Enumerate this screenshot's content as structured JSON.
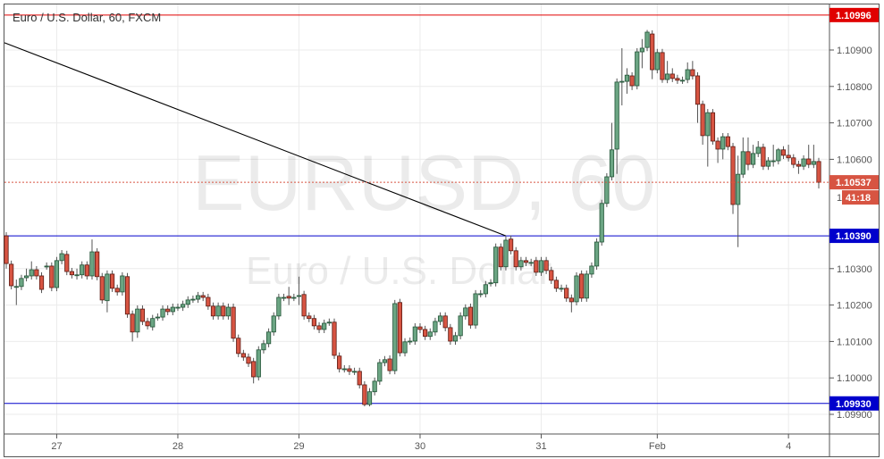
{
  "header": {
    "title": "Euro / U.S. Dollar, 60, FXCM"
  },
  "watermark": {
    "symbol": "EURUSD, 60",
    "description": "Euro / U.S. Dollar"
  },
  "colors": {
    "up": "#6ba583",
    "up_border": "#225437",
    "down": "#d75442",
    "down_border": "#5b1a13",
    "resistance_line": "#e00000",
    "support_line": "#0000cc",
    "trendline": "#000000",
    "grid": "#ebebeb"
  },
  "chart_data": {
    "type": "candlestick",
    "symbol": "EURUSD",
    "interval": "60",
    "source": "FXCM",
    "ylim": [
      1.0986,
      1.1109
    ],
    "yticks": [
      "1.10900",
      "1.10800",
      "1.10700",
      "1.10600",
      "1.10300",
      "1.10200",
      "1.10100",
      "1.10000",
      "1.09900"
    ],
    "xticks": [
      {
        "label": "27",
        "candle_index": 10
      },
      {
        "label": "28",
        "candle_index": 34
      },
      {
        "label": "29",
        "candle_index": 58
      },
      {
        "label": "30",
        "candle_index": 82
      },
      {
        "label": "31",
        "candle_index": 106
      },
      {
        "label": "Feb",
        "candle_index": 129
      },
      {
        "label": "4",
        "candle_index": 155
      }
    ],
    "grid": true,
    "horizontal_lines": [
      {
        "price": 1.10996,
        "label": "1.10996",
        "color": "#e00000"
      },
      {
        "price": 1.1039,
        "label": "1.10390",
        "color": "#0000cc"
      },
      {
        "price": 1.0993,
        "label": "1.09930",
        "color": "#0000cc"
      }
    ],
    "trendline": {
      "start": {
        "candle_index": 0,
        "price": 1.1092
      },
      "end": {
        "candle_index": 99,
        "price": 1.1039
      }
    },
    "last_price": {
      "price": 1.10537,
      "label": "1.10537",
      "countdown": "41:18",
      "color": "#d75442"
    },
    "candles_ohlc": [
      [
        1.1039,
        1.104,
        1.103,
        1.10314
      ],
      [
        1.10312,
        1.10322,
        1.10243,
        1.10253
      ],
      [
        1.10251,
        1.1027,
        1.102,
        1.10251
      ],
      [
        1.10251,
        1.10283,
        1.10241,
        1.10273
      ],
      [
        1.10275,
        1.103,
        1.10265,
        1.1028
      ],
      [
        1.1028,
        1.1032,
        1.1027,
        1.10297
      ],
      [
        1.10297,
        1.10307,
        1.1027,
        1.1028
      ],
      [
        1.1028,
        1.1029,
        1.10233,
        1.10243
      ],
      [
        1.10307,
        1.10317,
        1.10297,
        1.10307
      ],
      [
        1.10307,
        1.10317,
        1.10238,
        1.10248
      ],
      [
        1.10248,
        1.10332,
        1.10238,
        1.10322
      ],
      [
        1.10322,
        1.10351,
        1.10312,
        1.10341
      ],
      [
        1.10339,
        1.10349,
        1.10282,
        1.10292
      ],
      [
        1.10292,
        1.10302,
        1.10273,
        1.10283
      ],
      [
        1.10283,
        1.103,
        1.1027,
        1.10283
      ],
      [
        1.10283,
        1.1032,
        1.10273,
        1.1031
      ],
      [
        1.1031,
        1.1032,
        1.1027,
        1.1028
      ],
      [
        1.1028,
        1.1038,
        1.1027,
        1.10346
      ],
      [
        1.10346,
        1.10356,
        1.10268,
        1.10278
      ],
      [
        1.10278,
        1.10288,
        1.10204,
        1.10214
      ],
      [
        1.10212,
        1.10295,
        1.1018,
        1.10285
      ],
      [
        1.10285,
        1.10295,
        1.10236,
        1.10246
      ],
      [
        1.10246,
        1.10256,
        1.10226,
        1.10236
      ],
      [
        1.10236,
        1.1029,
        1.10226,
        1.1028
      ],
      [
        1.10278,
        1.10288,
        1.10165,
        1.10175
      ],
      [
        1.10175,
        1.10185,
        1.101,
        1.10126
      ],
      [
        1.10126,
        1.10199,
        1.1011,
        1.10189
      ],
      [
        1.10189,
        1.10199,
        1.10145,
        1.10155
      ],
      [
        1.10155,
        1.10165,
        1.10133,
        1.10143
      ],
      [
        1.1014,
        1.10173,
        1.1013,
        1.10163
      ],
      [
        1.10167,
        1.10177,
        1.10157,
        1.10167
      ],
      [
        1.10167,
        1.10199,
        1.10157,
        1.10189
      ],
      [
        1.10189,
        1.10199,
        1.10172,
        1.10182
      ],
      [
        1.10182,
        1.10204,
        1.10172,
        1.10194
      ],
      [
        1.10194,
        1.10204,
        1.10184,
        1.10194
      ],
      [
        1.10194,
        1.10212,
        1.10184,
        1.10202
      ],
      [
        1.10202,
        1.10224,
        1.10192,
        1.10214
      ],
      [
        1.10216,
        1.10226,
        1.10206,
        1.10216
      ],
      [
        1.10216,
        1.10236,
        1.10206,
        1.10226
      ],
      [
        1.10226,
        1.10236,
        1.10211,
        1.10221
      ],
      [
        1.10221,
        1.10231,
        1.10187,
        1.10197
      ],
      [
        1.10197,
        1.10207,
        1.1016,
        1.1017
      ],
      [
        1.1017,
        1.10207,
        1.1016,
        1.10197
      ],
      [
        1.10197,
        1.10207,
        1.1016,
        1.1017
      ],
      [
        1.1017,
        1.10204,
        1.1016,
        1.10194
      ],
      [
        1.10194,
        1.10204,
        1.10099,
        1.10109
      ],
      [
        1.10109,
        1.10119,
        1.10057,
        1.10067
      ],
      [
        1.10067,
        1.10077,
        1.10047,
        1.10057
      ],
      [
        1.10057,
        1.10067,
        1.1003,
        1.1004
      ],
      [
        1.10045,
        1.10055,
        1.09985,
        1.10003
      ],
      [
        1.10003,
        1.10087,
        1.09993,
        1.10077
      ],
      [
        1.10077,
        1.10104,
        1.10067,
        1.10094
      ],
      [
        1.10094,
        1.10136,
        1.10084,
        1.10126
      ],
      [
        1.10126,
        1.1018,
        1.10116,
        1.1017
      ],
      [
        1.1017,
        1.10231,
        1.1016,
        1.10221
      ],
      [
        1.10221,
        1.10231,
        1.10211,
        1.10221
      ],
      [
        1.10224,
        1.1025,
        1.102,
        1.10219
      ],
      [
        1.10221,
        1.10231,
        1.10211,
        1.10221
      ],
      [
        1.10226,
        1.10278,
        1.102,
        1.10226
      ],
      [
        1.10229,
        1.10239,
        1.1016,
        1.1017
      ],
      [
        1.1017,
        1.1018,
        1.10153,
        1.10163
      ],
      [
        1.10163,
        1.10173,
        1.10133,
        1.10143
      ],
      [
        1.10143,
        1.10153,
        1.10123,
        1.10133
      ],
      [
        1.10133,
        1.1016,
        1.10123,
        1.1015
      ],
      [
        1.10153,
        1.10163,
        1.10143,
        1.10153
      ],
      [
        1.10153,
        1.10163,
        1.10052,
        1.10062
      ],
      [
        1.1006,
        1.1007,
        1.10015,
        1.10025
      ],
      [
        1.10025,
        1.10035,
        1.10015,
        1.10025
      ],
      [
        1.10025,
        1.10035,
        1.10008,
        1.10018
      ],
      [
        1.10018,
        1.10028,
        1.10008,
        1.10018
      ],
      [
        1.10018,
        1.10028,
        1.09971,
        1.09981
      ],
      [
        1.09981,
        1.09991,
        1.09922,
        1.09927
      ],
      [
        1.09927,
        1.09972,
        1.09922,
        1.09962
      ],
      [
        1.09962,
        1.10001,
        1.09952,
        1.09991
      ],
      [
        1.09991,
        1.10052,
        1.09981,
        1.10042
      ],
      [
        1.10042,
        1.1006,
        1.10032,
        1.1005
      ],
      [
        1.10052,
        1.10062,
        1.1001,
        1.1002
      ],
      [
        1.1002,
        1.10214,
        1.1001,
        1.10204
      ],
      [
        1.10207,
        1.10217,
        1.10059,
        1.10069
      ],
      [
        1.10069,
        1.10109,
        1.10059,
        1.10099
      ],
      [
        1.10101,
        1.10111,
        1.10091,
        1.10101
      ],
      [
        1.10101,
        1.1015,
        1.10091,
        1.1014
      ],
      [
        1.1014,
        1.1015,
        1.10123,
        1.10133
      ],
      [
        1.10133,
        1.10143,
        1.10104,
        1.10114
      ],
      [
        1.10114,
        1.10136,
        1.10104,
        1.10126
      ],
      [
        1.10126,
        1.10165,
        1.10116,
        1.10155
      ],
      [
        1.10155,
        1.1018,
        1.10145,
        1.1017
      ],
      [
        1.1017,
        1.1018,
        1.10128,
        1.10138
      ],
      [
        1.10138,
        1.10148,
        1.10091,
        1.10101
      ],
      [
        1.10101,
        1.10126,
        1.10091,
        1.10116
      ],
      [
        1.10116,
        1.1018,
        1.10106,
        1.1017
      ],
      [
        1.1017,
        1.10202,
        1.1016,
        1.10192
      ],
      [
        1.10194,
        1.10204,
        1.10135,
        1.10145
      ],
      [
        1.10145,
        1.10241,
        1.10135,
        1.10231
      ],
      [
        1.10231,
        1.10241,
        1.10221,
        1.10231
      ],
      [
        1.10231,
        1.10266,
        1.10221,
        1.10256
      ],
      [
        1.10261,
        1.10271,
        1.10251,
        1.10261
      ],
      [
        1.10261,
        1.10369,
        1.10251,
        1.10359
      ],
      [
        1.10359,
        1.10369,
        1.10295,
        1.10305
      ],
      [
        1.10305,
        1.10388,
        1.10295,
        1.10378
      ],
      [
        1.10381,
        1.10391,
        1.10339,
        1.10349
      ],
      [
        1.10349,
        1.10359,
        1.10295,
        1.10305
      ],
      [
        1.10305,
        1.10332,
        1.10295,
        1.10322
      ],
      [
        1.10322,
        1.10332,
        1.10307,
        1.10317
      ],
      [
        1.10317,
        1.10327,
        1.10307,
        1.10317
      ],
      [
        1.10322,
        1.10332,
        1.1028,
        1.1029
      ],
      [
        1.1029,
        1.10332,
        1.1028,
        1.10322
      ],
      [
        1.10322,
        1.10332,
        1.10285,
        1.10295
      ],
      [
        1.10295,
        1.10305,
        1.10258,
        1.10268
      ],
      [
        1.10268,
        1.10278,
        1.10236,
        1.10246
      ],
      [
        1.10246,
        1.10256,
        1.10236,
        1.10246
      ],
      [
        1.10246,
        1.10256,
        1.10209,
        1.10219
      ],
      [
        1.10219,
        1.10229,
        1.1018,
        1.10209
      ],
      [
        1.10209,
        1.1029,
        1.10199,
        1.1028
      ],
      [
        1.10285,
        1.10295,
        1.10209,
        1.10219
      ],
      [
        1.10219,
        1.10295,
        1.10209,
        1.10285
      ],
      [
        1.10285,
        1.10317,
        1.10275,
        1.10307
      ],
      [
        1.10307,
        1.10383,
        1.10297,
        1.10373
      ],
      [
        1.10373,
        1.10489,
        1.10363,
        1.10479
      ],
      [
        1.10479,
        1.10562,
        1.10469,
        1.10552
      ],
      [
        1.10552,
        1.107,
        1.10542,
        1.10626
      ],
      [
        1.10628,
        1.10822,
        1.1056,
        1.10812
      ],
      [
        1.10812,
        1.10905,
        1.10748,
        1.10814
      ],
      [
        1.10814,
        1.1085,
        1.1078,
        1.10831
      ],
      [
        1.10829,
        1.10839,
        1.1079,
        1.10802
      ],
      [
        1.10802,
        1.10905,
        1.10792,
        1.10895
      ],
      [
        1.10895,
        1.1093,
        1.1085,
        1.10905
      ],
      [
        1.10907,
        1.10955,
        1.10897,
        1.10949
      ],
      [
        1.10944,
        1.10954,
        1.1082,
        1.10846
      ],
      [
        1.10846,
        1.10903,
        1.10836,
        1.10893
      ],
      [
        1.10893,
        1.10903,
        1.1081,
        1.10819
      ],
      [
        1.10819,
        1.1087,
        1.10809,
        1.10834
      ],
      [
        1.10834,
        1.1085,
        1.10812,
        1.10822
      ],
      [
        1.10822,
        1.10832,
        1.10807,
        1.10817
      ],
      [
        1.10817,
        1.10827,
        1.10807,
        1.10817
      ],
      [
        1.10819,
        1.10866,
        1.10809,
        1.10846
      ],
      [
        1.10846,
        1.1087,
        1.10819,
        1.10829
      ],
      [
        1.10829,
        1.10839,
        1.107,
        1.10751
      ],
      [
        1.10751,
        1.10761,
        1.1064,
        1.10665
      ],
      [
        1.10665,
        1.10738,
        1.1058,
        1.10728
      ],
      [
        1.10728,
        1.10738,
        1.1064,
        1.1065
      ],
      [
        1.1065,
        1.1066,
        1.1059,
        1.10628
      ],
      [
        1.10628,
        1.10672,
        1.106,
        1.10662
      ],
      [
        1.10662,
        1.10672,
        1.10625,
        1.10635
      ],
      [
        1.10635,
        1.10645,
        1.1045,
        1.10476
      ],
      [
        1.10476,
        1.1061,
        1.10359,
        1.10559
      ],
      [
        1.10559,
        1.1066,
        1.10549,
        1.10621
      ],
      [
        1.10621,
        1.1066,
        1.1057,
        1.10586
      ],
      [
        1.10586,
        1.1064,
        1.10576,
        1.10616
      ],
      [
        1.10616,
        1.1065,
        1.10606,
        1.10633
      ],
      [
        1.10633,
        1.10643,
        1.10571,
        1.10581
      ],
      [
        1.10581,
        1.10606,
        1.10571,
        1.10596
      ],
      [
        1.10596,
        1.1064,
        1.1058,
        1.10596
      ],
      [
        1.10596,
        1.10631,
        1.10586,
        1.10626
      ],
      [
        1.10626,
        1.10636,
        1.10601,
        1.10611
      ],
      [
        1.10611,
        1.1064,
        1.10594,
        1.10604
      ],
      [
        1.10604,
        1.10614,
        1.10576,
        1.10586
      ],
      [
        1.10586,
        1.10596,
        1.1056,
        1.10581
      ],
      [
        1.10581,
        1.10611,
        1.10571,
        1.10601
      ],
      [
        1.10601,
        1.1064,
        1.10576,
        1.10586
      ],
      [
        1.10586,
        1.1064,
        1.10576,
        1.10594
      ],
      [
        1.10594,
        1.10604,
        1.1052,
        1.10537
      ]
    ]
  }
}
